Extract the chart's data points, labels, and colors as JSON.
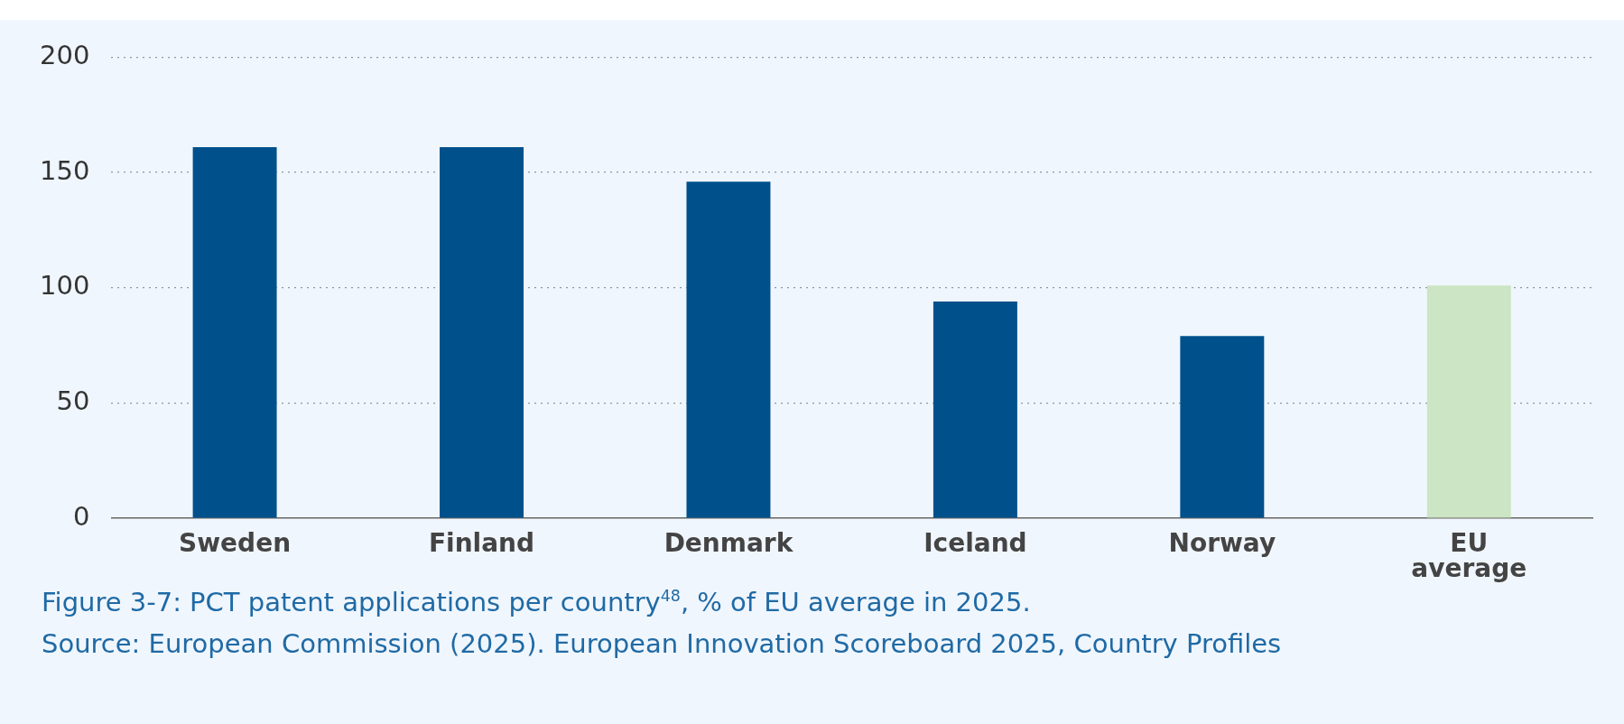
{
  "chart_data": {
    "type": "bar",
    "title": "Figure 3-7: PCT patent applications per country$^{48}$, % of EU average in 2025.",
    "categories": [
      "Sweden",
      "Finland",
      "Denmark",
      "Iceland",
      "Norway",
      "EU average"
    ],
    "values": [
      161,
      161,
      146,
      94,
      79,
      101
    ],
    "colors": [
      "#00508c",
      "#00508c",
      "#00508c",
      "#00508c",
      "#00508c",
      "#cce5c4"
    ],
    "ylim": [
      0,
      200
    ],
    "yticks": [
      0,
      50,
      100,
      150,
      200
    ],
    "grid": "y",
    "legend": false,
    "annotations": [
      "Source: European Commission (2025). European Innovation Scoreboard 2025, Country Profiles"
    ]
  }
}
